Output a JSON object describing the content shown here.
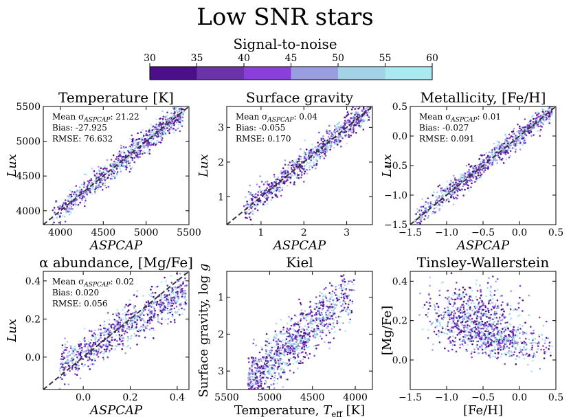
{
  "figure": {
    "title": "Low SNR stars",
    "colorbar": {
      "label": "Signal-to-noise",
      "ticks": [
        "30",
        "35",
        "40",
        "45",
        "50",
        "55",
        "60"
      ],
      "colors": [
        "#4b0f8a",
        "#6a33a8",
        "#8a3fd8",
        "#9a9ee0",
        "#a3d2e6",
        "#a8eaf0"
      ]
    }
  },
  "chart_data": [
    {
      "type": "scatter",
      "title": "Temperature [K]",
      "xlabel": "ASPCAP",
      "ylabel": "Lux",
      "xlim": [
        3800,
        5500
      ],
      "ylim": [
        3800,
        5500
      ],
      "xticks": [
        4000,
        4500,
        5000,
        5500
      ],
      "yticks": [
        4000,
        4500,
        5000,
        5500
      ],
      "xtick_labels": [
        "4000",
        "4500",
        "5000",
        "5500"
      ],
      "ytick_labels": [
        "4000",
        "4500",
        "5000",
        "5500"
      ],
      "identity_line": true,
      "stats": [
        "Mean σ",
        "ASPCAP",
        ": 21.22",
        "Bias: -27.925",
        "RMSE: 76.632"
      ],
      "cloud": {
        "x_range": [
          3900,
          5450
        ],
        "relation": "identity",
        "scatter": 90,
        "count": 900
      }
    },
    {
      "type": "scatter",
      "title": "Surface gravity",
      "xlabel": "ASPCAP",
      "ylabel": "Lux",
      "xlim": [
        0.2,
        3.6
      ],
      "ylim": [
        0.2,
        3.6
      ],
      "xticks": [
        1,
        2,
        3
      ],
      "yticks": [
        1,
        2,
        3
      ],
      "xtick_labels": [
        "1",
        "2",
        "3"
      ],
      "ytick_labels": [
        "1",
        "2",
        "3"
      ],
      "identity_line": true,
      "stats": [
        "Mean σ",
        "ASPCAP",
        ": 0.04",
        "Bias: -0.055",
        "RMSE: 0.170"
      ],
      "cloud": {
        "x_range": [
          0.6,
          3.55
        ],
        "relation": "identity",
        "scatter": 0.18,
        "count": 900
      }
    },
    {
      "type": "scatter",
      "title": "Metallicity, [Fe/H]",
      "xlabel": "ASPCAP",
      "ylabel": "Lux",
      "xlim": [
        -1.5,
        0.5
      ],
      "ylim": [
        -1.5,
        0.5
      ],
      "xticks": [
        -1.5,
        -1.0,
        -0.5,
        0.0,
        0.5
      ],
      "yticks": [
        -1.5,
        -1.0,
        -0.5,
        0.0,
        0.5
      ],
      "xtick_labels": [
        "−1.5",
        "−1.0",
        "−0.5",
        "0.0",
        "0.5"
      ],
      "ytick_labels": [
        "−1.5",
        "−1.0",
        "−0.5",
        "0.0",
        "0.5"
      ],
      "identity_line": true,
      "stats": [
        "Mean σ",
        "ASPCAP",
        ": 0.01",
        "Bias: -0.027",
        "RMSE: 0.091"
      ],
      "cloud": {
        "x_range": [
          -1.45,
          0.45
        ],
        "relation": "identity",
        "scatter": 0.09,
        "count": 900
      }
    },
    {
      "type": "scatter",
      "title": "α abundance, [Mg/Fe]",
      "xlabel": "ASPCAP",
      "ylabel": "Lux",
      "xlim": [
        -0.17,
        0.45
      ],
      "ylim": [
        -0.17,
        0.45
      ],
      "xticks": [
        0.0,
        0.2,
        0.4
      ],
      "yticks": [
        0.0,
        0.2,
        0.4
      ],
      "xtick_labels": [
        "0.0",
        "0.2",
        "0.4"
      ],
      "ytick_labels": [
        "0.0",
        "0.2",
        "0.4"
      ],
      "identity_line": true,
      "stats": [
        "Mean σ",
        "ASPCAP",
        ": 0.02",
        "Bias: 0.020",
        "RMSE: 0.056"
      ],
      "cloud": {
        "x_range": [
          -0.1,
          0.44
        ],
        "relation": "compressed",
        "scatter": 0.05,
        "count": 900
      }
    },
    {
      "type": "scatter",
      "title": "Kiel",
      "xlabel": "Temperature, T_eff [K]",
      "ylabel": "Surface gravity, log g",
      "xlim": [
        5500,
        3800
      ],
      "ylim": [
        3.5,
        0.3
      ],
      "xticks": [
        5500,
        5000,
        4500,
        4000
      ],
      "yticks": [
        1,
        2,
        3
      ],
      "xtick_labels": [
        "5500",
        "5000",
        "4500",
        "4000"
      ],
      "ytick_labels": [
        "1",
        "2",
        "3"
      ],
      "identity_line": false,
      "cloud": {
        "x_range": [
          4000,
          5250
        ],
        "relation": "kiel",
        "scatter": 0.35,
        "count": 1100
      }
    },
    {
      "type": "scatter",
      "title": "Tinsley-Wallerstein",
      "xlabel": "[Fe/H]",
      "ylabel": "[Mg/Fe]",
      "xlim": [
        -1.5,
        0.5
      ],
      "ylim": [
        -0.15,
        0.45
      ],
      "xticks": [
        -1.5,
        -1.0,
        -0.5,
        0.0,
        0.5
      ],
      "yticks": [
        0.0,
        0.2,
        0.4
      ],
      "xtick_labels": [
        "−1.5",
        "−1.0",
        "−0.5",
        "0.0",
        "0.5"
      ],
      "ytick_labels": [
        "0.0",
        "0.2",
        "0.4"
      ],
      "identity_line": false,
      "cloud": {
        "x_range": [
          -1.3,
          0.45
        ],
        "relation": "tw",
        "scatter": 0.07,
        "count": 1100
      }
    }
  ]
}
